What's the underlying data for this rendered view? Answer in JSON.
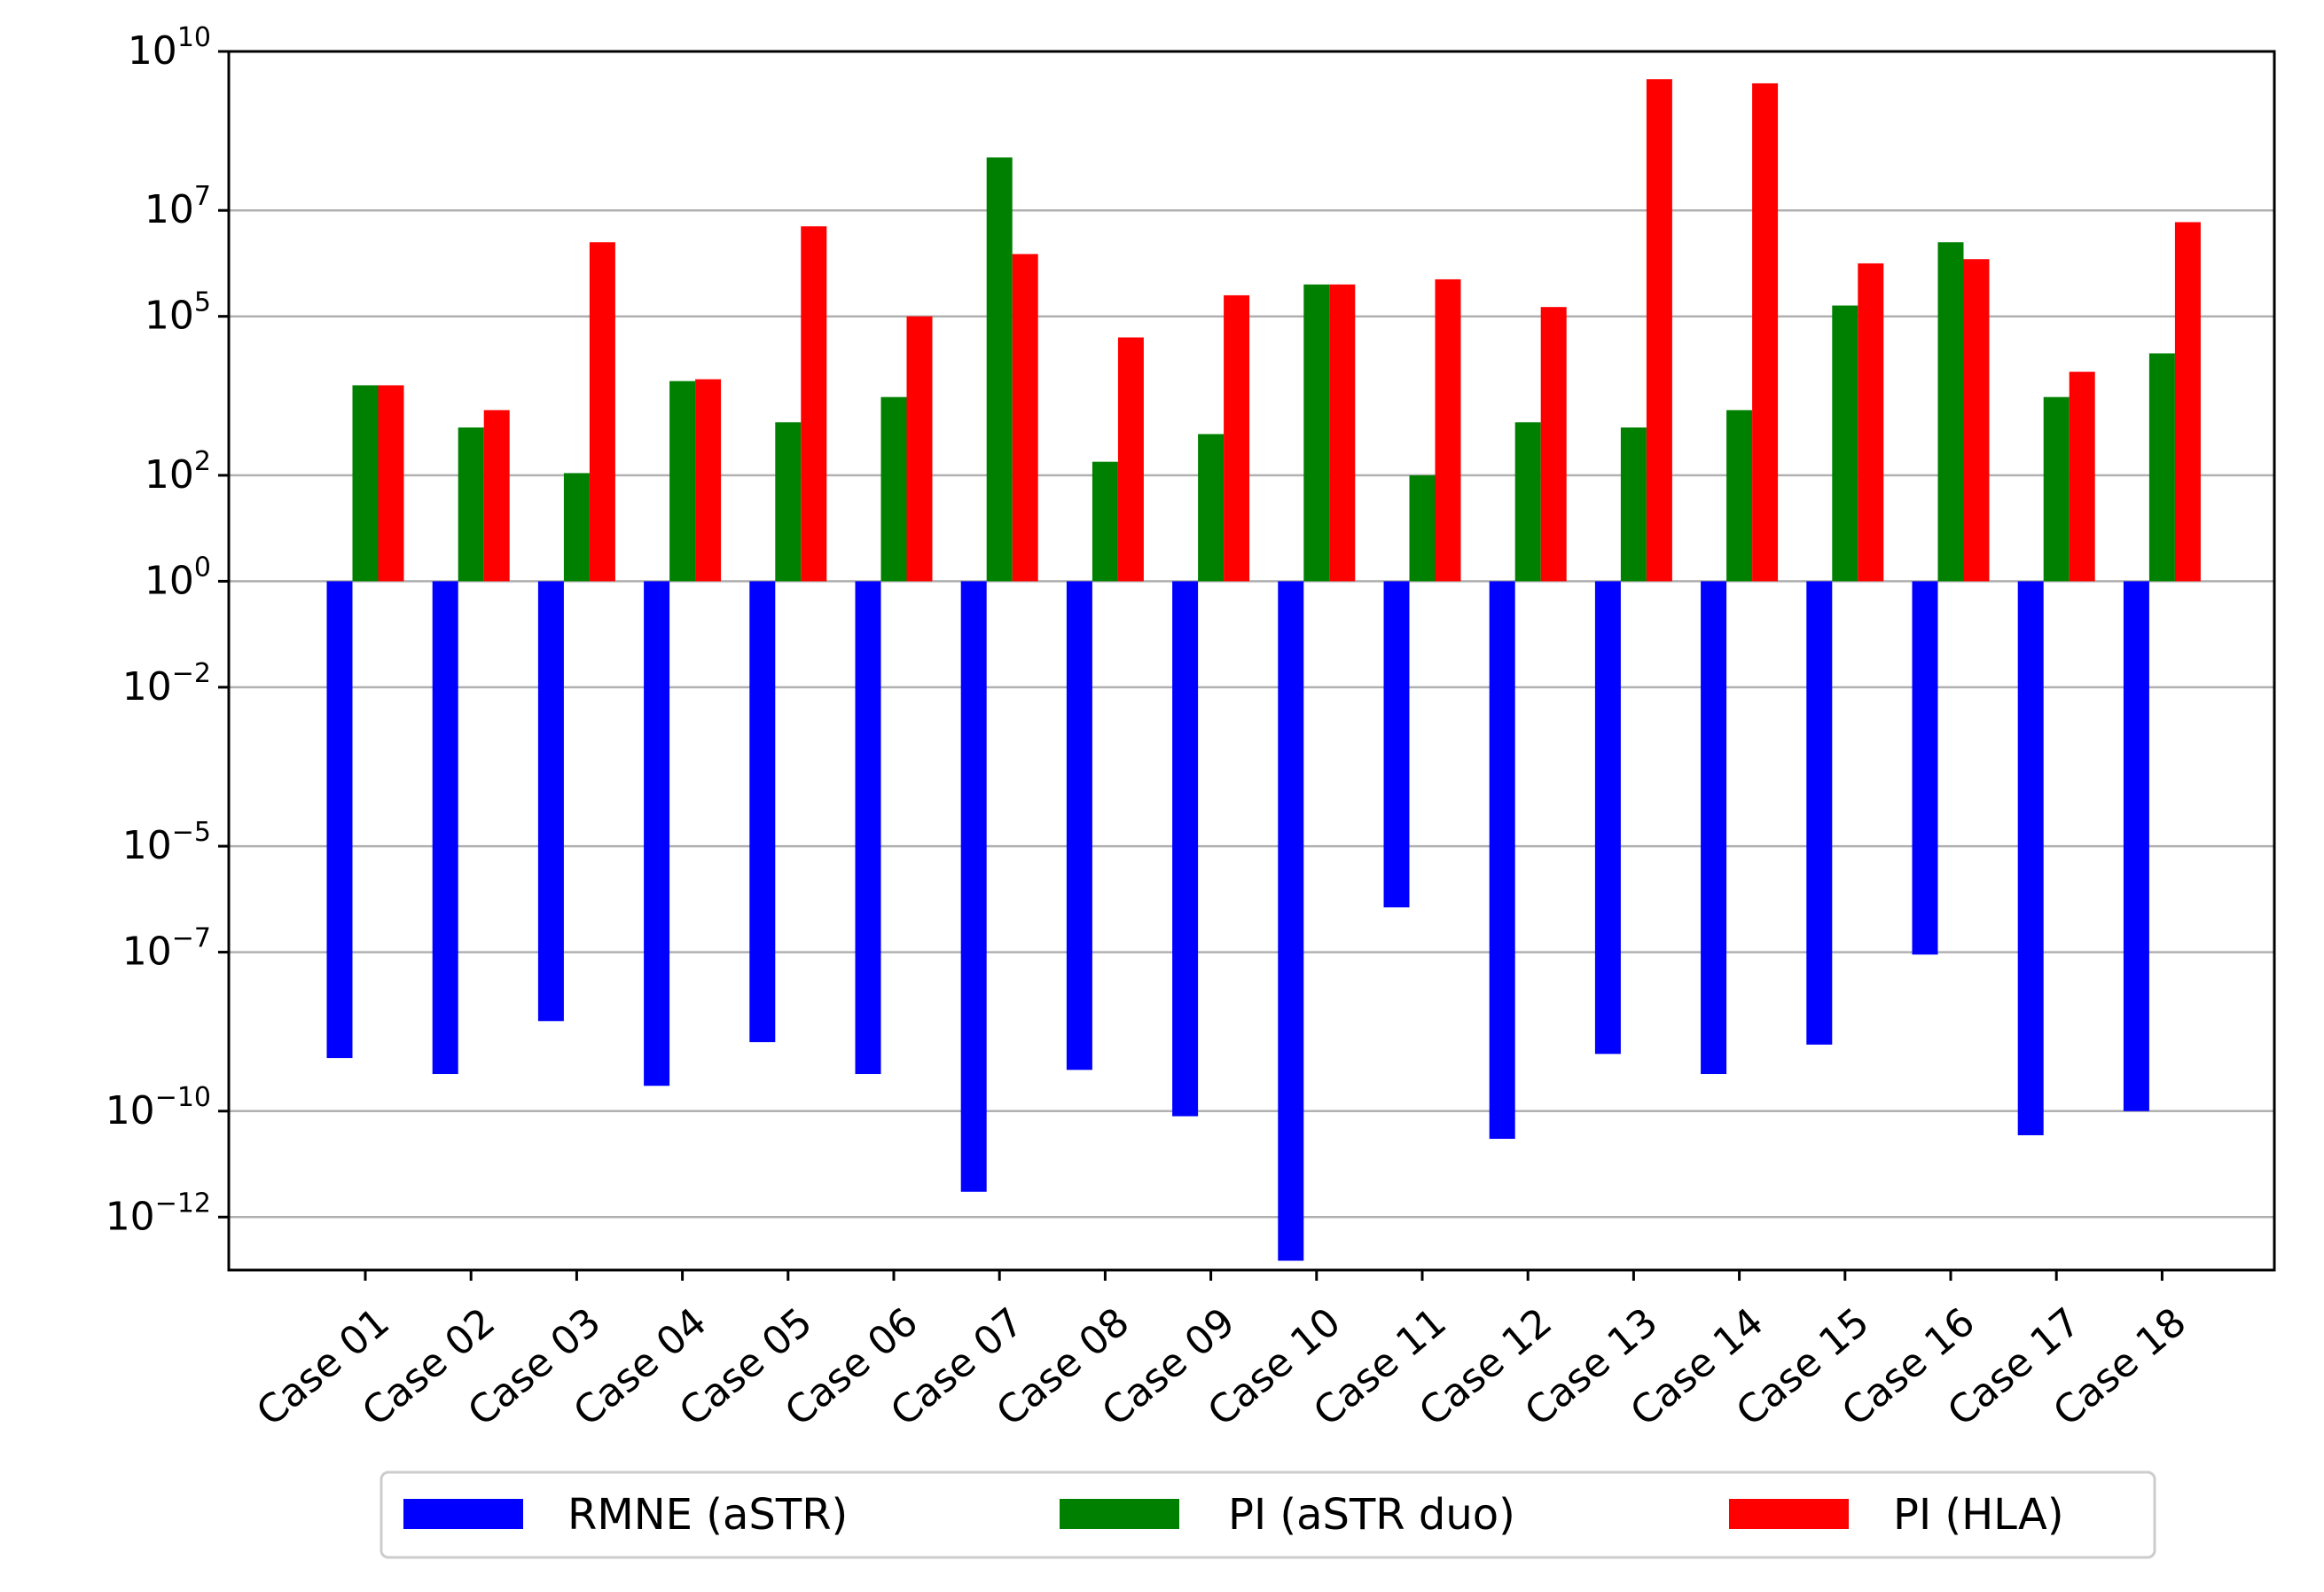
{
  "chart_data": {
    "type": "bar",
    "yscale": "log",
    "ylim": [
      1e-13,
      10000000000.0
    ],
    "grid": "horizontal",
    "legend_position": "bottom",
    "categories": [
      "Case 01",
      "Case 02",
      "Case 03",
      "Case 04",
      "Case 05",
      "Case 06",
      "Case 07",
      "Case 08",
      "Case 09",
      "Case 10",
      "Case 11",
      "Case 12",
      "Case 13",
      "Case 14",
      "Case 15",
      "Case 16",
      "Case 17",
      "Case 18"
    ],
    "y_ticks": [
      {
        "base": "10",
        "exp": "10",
        "value_exp": 10
      },
      {
        "base": "10",
        "exp": "7",
        "value_exp": 7
      },
      {
        "base": "10",
        "exp": "5",
        "value_exp": 5
      },
      {
        "base": "10",
        "exp": "2",
        "value_exp": 2
      },
      {
        "base": "10",
        "exp": "0",
        "value_exp": 0
      },
      {
        "base": "10",
        "exp": "−2",
        "value_exp": -2
      },
      {
        "base": "10",
        "exp": "−5",
        "value_exp": -5
      },
      {
        "base": "10",
        "exp": "−7",
        "value_exp": -7
      },
      {
        "base": "10",
        "exp": "−10",
        "value_exp": -10
      },
      {
        "base": "10",
        "exp": "−12",
        "value_exp": -12
      }
    ],
    "series": [
      {
        "name": "RMNE (aSTR)",
        "color": "#0000ff",
        "values": [
          1e-09,
          5e-10,
          5e-09,
          3e-10,
          2e-09,
          5e-10,
          3e-12,
          6e-10,
          8e-11,
          1.5e-13,
          7e-07,
          3e-11,
          1.2e-09,
          5e-10,
          1.8e-09,
          9e-08,
          3.5e-11,
          1e-10
        ]
      },
      {
        "name": "PI (aSTR duo)",
        "color": "#008000",
        "values": [
          5000,
          800,
          110,
          6000,
          1000,
          3000,
          100000000.0,
          180,
          600,
          400000,
          100,
          1000,
          800,
          1700,
          160000,
          2500000,
          3000,
          20000
        ]
      },
      {
        "name": "PI (HLA)",
        "color": "#ff0000",
        "values": [
          5000,
          1700,
          2500000,
          6500,
          5000000,
          100000,
          1500000,
          40000,
          250000,
          400000,
          500000,
          150000,
          3000000000.0,
          2500000000.0,
          1000000,
          1200000,
          9000,
          6000000
        ]
      }
    ]
  }
}
